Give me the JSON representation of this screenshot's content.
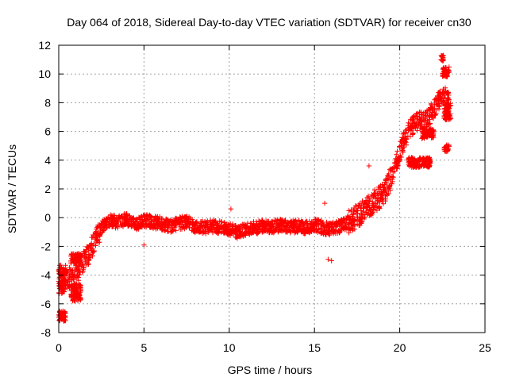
{
  "chart_data": {
    "type": "scatter",
    "title": "Day 064 of 2018, Sidereal Day-to-day VTEC variation (SDTVAR) for receiver cn30",
    "xlabel": "GPS time / hours",
    "ylabel": "SDTVAR / TECUs",
    "xlim": [
      0,
      25
    ],
    "ylim": [
      -8,
      12
    ],
    "x_ticks": [
      0,
      5,
      10,
      15,
      20,
      25
    ],
    "y_ticks": [
      -8,
      -6,
      -4,
      -2,
      0,
      2,
      4,
      6,
      8,
      10,
      12
    ],
    "grid": true,
    "marker": "plus",
    "color": "#ff0000",
    "profile": [
      [
        0.0,
        -4.7
      ],
      [
        0.3,
        -4.5
      ],
      [
        0.6,
        -4.2
      ],
      [
        0.9,
        -4.2
      ],
      [
        1.1,
        -3.8
      ],
      [
        1.3,
        -3.3
      ],
      [
        1.5,
        -3.0
      ],
      [
        1.7,
        -2.6
      ],
      [
        1.9,
        -2.2
      ],
      [
        2.1,
        -1.7
      ],
      [
        2.3,
        -1.2
      ],
      [
        2.6,
        -0.6
      ],
      [
        3.0,
        -0.2
      ],
      [
        3.5,
        -0.3
      ],
      [
        4.0,
        -0.1
      ],
      [
        4.5,
        -0.5
      ],
      [
        5.0,
        -0.2
      ],
      [
        5.5,
        -0.3
      ],
      [
        6.0,
        -0.4
      ],
      [
        6.5,
        -0.6
      ],
      [
        7.0,
        -0.4
      ],
      [
        7.5,
        -0.3
      ],
      [
        8.0,
        -0.6
      ],
      [
        8.5,
        -0.7
      ],
      [
        9.0,
        -0.6
      ],
      [
        9.5,
        -0.7
      ],
      [
        10.0,
        -0.8
      ],
      [
        10.5,
        -1.0
      ],
      [
        11.0,
        -0.8
      ],
      [
        11.5,
        -0.7
      ],
      [
        12.0,
        -0.6
      ],
      [
        12.5,
        -0.7
      ],
      [
        13.0,
        -0.5
      ],
      [
        13.5,
        -0.7
      ],
      [
        14.0,
        -0.6
      ],
      [
        14.5,
        -0.7
      ],
      [
        15.0,
        -0.5
      ],
      [
        15.5,
        -0.7
      ],
      [
        16.0,
        -0.8
      ],
      [
        16.5,
        -0.6
      ],
      [
        17.0,
        -0.3
      ],
      [
        17.5,
        0.1
      ],
      [
        18.0,
        0.6
      ],
      [
        18.5,
        1.1
      ],
      [
        19.0,
        1.6
      ],
      [
        19.3,
        2.2
      ],
      [
        19.6,
        3.2
      ],
      [
        19.9,
        4.2
      ],
      [
        20.2,
        5.2
      ],
      [
        20.5,
        6.0
      ],
      [
        20.8,
        6.5
      ],
      [
        21.1,
        6.7
      ],
      [
        21.4,
        6.8
      ],
      [
        21.7,
        7.0
      ],
      [
        22.0,
        7.6
      ],
      [
        22.3,
        8.2
      ],
      [
        22.6,
        8.6
      ],
      [
        22.9,
        8.0
      ]
    ],
    "clusters": [
      {
        "x": [
          0.0,
          0.4
        ],
        "y": [
          -7.2,
          -6.5
        ]
      },
      {
        "x": [
          0.0,
          0.4
        ],
        "y": [
          -5.0,
          -4.4
        ]
      },
      {
        "x": [
          0.0,
          0.4
        ],
        "y": [
          -4.0,
          -3.3
        ]
      },
      {
        "x": [
          0.7,
          1.3
        ],
        "y": [
          -5.8,
          -4.6
        ]
      },
      {
        "x": [
          0.7,
          1.3
        ],
        "y": [
          -3.2,
          -2.5
        ]
      },
      {
        "x": [
          20.5,
          21.8
        ],
        "y": [
          3.5,
          4.2
        ]
      },
      {
        "x": [
          21.3,
          22.0
        ],
        "y": [
          5.5,
          6.2
        ]
      },
      {
        "x": [
          22.4,
          22.6
        ],
        "y": [
          10.9,
          11.3
        ]
      },
      {
        "x": [
          22.5,
          22.9
        ],
        "y": [
          9.8,
          10.5
        ]
      },
      {
        "x": [
          22.6,
          23.0
        ],
        "y": [
          6.8,
          8.0
        ]
      },
      {
        "x": [
          22.6,
          22.9
        ],
        "y": [
          4.6,
          5.1
        ]
      }
    ],
    "outliers": [
      [
        10.1,
        0.6
      ],
      [
        15.8,
        -2.9
      ],
      [
        16.0,
        -3.0
      ],
      [
        18.2,
        3.6
      ],
      [
        5.0,
        -1.9
      ],
      [
        15.6,
        1.0
      ]
    ]
  }
}
